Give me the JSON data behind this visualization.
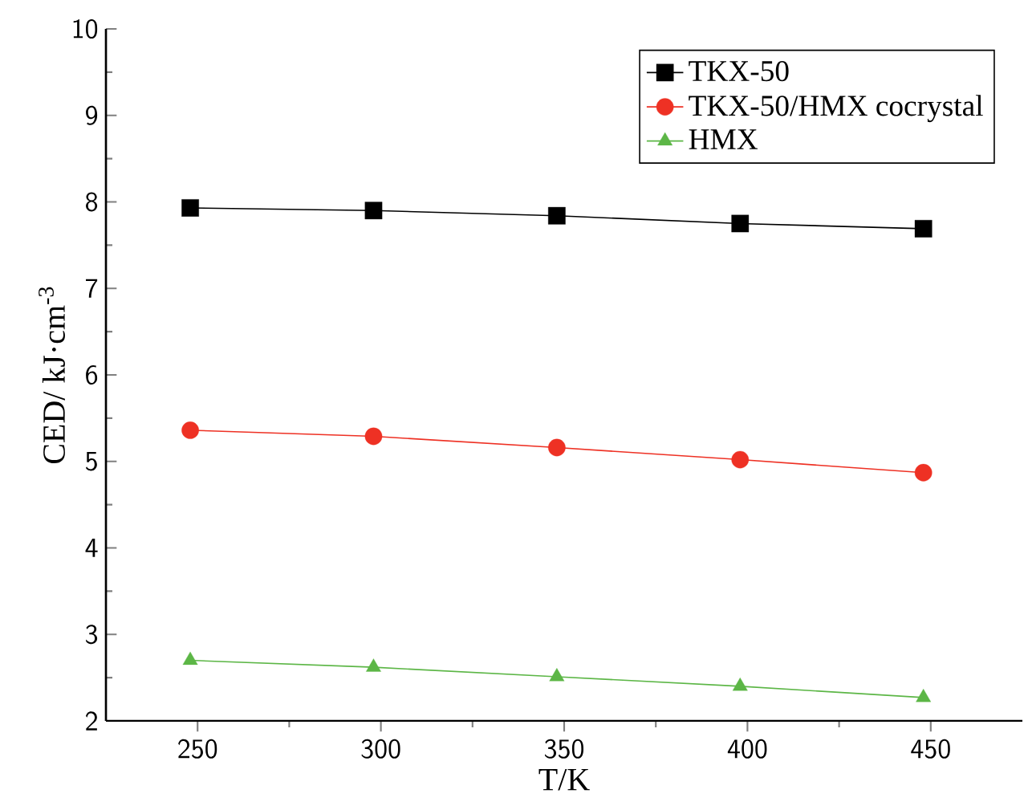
{
  "chart_data": {
    "type": "line",
    "xlabel": "T/K",
    "ylabel": "CED/ kJ·cm$^{-3}$",
    "x": [
      248,
      298,
      348,
      398,
      448
    ],
    "series": [
      {
        "name": "TKX-50",
        "color": "#000000",
        "marker": "square",
        "values": [
          7.93,
          7.9,
          7.84,
          7.75,
          7.69
        ]
      },
      {
        "name": "TKX-50/HMX cocrystal",
        "color": "#ee3124",
        "marker": "circle",
        "values": [
          5.36,
          5.29,
          5.16,
          5.02,
          4.87
        ]
      },
      {
        "name": "HMX",
        "color": "#5cb646",
        "marker": "triangle",
        "values": [
          2.7,
          2.62,
          2.51,
          2.4,
          2.27
        ]
      }
    ],
    "xlim": [
      225,
      475
    ],
    "ylim": [
      2,
      10
    ],
    "xticks": [
      250,
      300,
      350,
      400,
      450
    ],
    "yticks": [
      2,
      3,
      4,
      5,
      6,
      7,
      8,
      9,
      10
    ],
    "legend": "top right",
    "grid": false,
    "line_style": "solid"
  }
}
